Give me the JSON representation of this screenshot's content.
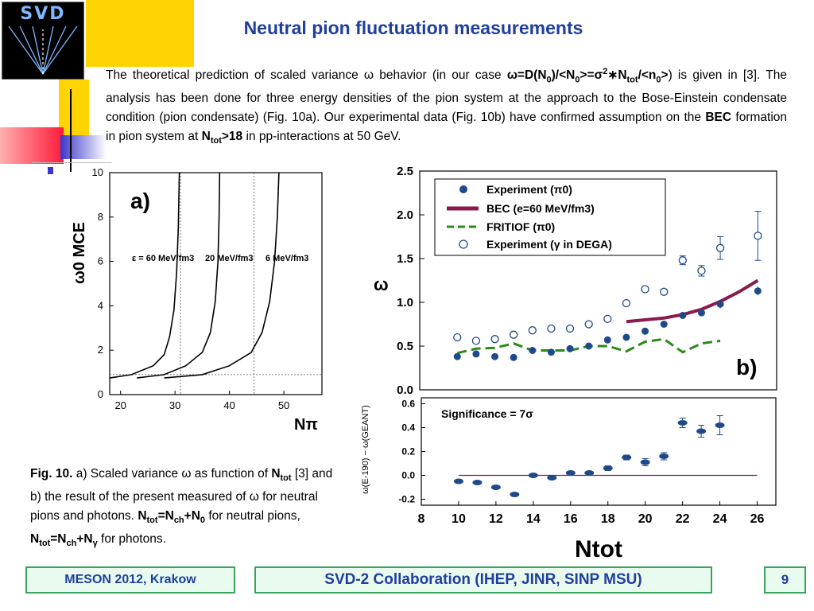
{
  "slide": {
    "title": "Neutral pion fluctuation measurements",
    "logo_text": "SVD",
    "intro": [
      {
        "t": "The theoretical prediction of scaled variance "
      },
      {
        "t": "ω",
        "b": false
      },
      {
        "t": " behavior (in our case "
      },
      {
        "t": "ω=D(N",
        "b": true
      },
      {
        "t": "0",
        "b": true,
        "sub": true
      },
      {
        "t": ")/<N",
        "b": true
      },
      {
        "t": "0",
        "b": true,
        "sub": true
      },
      {
        "t": ">=σ",
        "b": true
      },
      {
        "t": "2",
        "b": true,
        "sup": true
      },
      {
        "t": "∗N",
        "b": true
      },
      {
        "t": "tot",
        "b": true,
        "sub": true
      },
      {
        "t": "/<n",
        "b": true
      },
      {
        "t": "0",
        "b": true,
        "sub": true
      },
      {
        "t": ">",
        "b": true
      },
      {
        "t": ") is given in [3]. The analysis has been done for three energy densities of the pion system at the approach to the Bose-Einstein condensate condition (pion condensate) (Fig. 10a). Our experimental data (Fig. 10b) have confirmed assumption on the "
      },
      {
        "t": "BEC",
        "b": true
      },
      {
        "t": " formation in pion system at "
      },
      {
        "t": "N",
        "b": true
      },
      {
        "t": "tot",
        "b": true,
        "sub": true
      },
      {
        "t": ">18",
        "b": true
      },
      {
        "t": " in pp-interactions at 50 GeV."
      }
    ],
    "caption": [
      {
        "t": "Fig. 10.",
        "b": true
      },
      {
        "t": " a) Scaled variance ω as function of "
      },
      {
        "t": "N",
        "b": true
      },
      {
        "t": "tot",
        "b": true,
        "sub": true
      },
      {
        "t": " [3] and b) the result of the present measured of ω for neutral pions and photons.     "
      },
      {
        "t": "N",
        "b": true
      },
      {
        "t": "tot",
        "b": true,
        "sub": true
      },
      {
        "t": "=N",
        "b": true
      },
      {
        "t": "ch",
        "b": true,
        "sub": true
      },
      {
        "t": "+N",
        "b": true
      },
      {
        "t": "0",
        "b": true,
        "sub": true
      },
      {
        "t": " for neutral pions, "
      },
      {
        "t": "N",
        "b": true
      },
      {
        "t": "tot",
        "b": true,
        "sub": true
      },
      {
        "t": "=N",
        "b": true
      },
      {
        "t": "ch",
        "b": true,
        "sub": true
      },
      {
        "t": "+N",
        "b": true
      },
      {
        "t": "γ",
        "b": true,
        "sub": true
      },
      {
        "t": " for photons."
      }
    ],
    "footer": {
      "left": "MESON 2012, Krakow",
      "middle": "SVD-2 Collaboration (IHEP, JINR, SINP MSU)",
      "page": "9"
    },
    "colors": {
      "title": "#1f3ea0",
      "footer_bg": "#e9fbef",
      "footer_border": "#38a35a",
      "bec": "#8a1a4a",
      "fritiof": "#2a8a1a",
      "experiment": "#1f4a8a"
    }
  },
  "chart_data": [
    {
      "type": "line",
      "panel_label": "a)",
      "xlabel": "Nπ",
      "ylabel": "ω0 MCE",
      "xlim": [
        18,
        57
      ],
      "ylim": [
        0,
        10
      ],
      "xticks": [
        20,
        30,
        40,
        50
      ],
      "yticks": [
        0,
        2,
        4,
        6,
        8,
        10
      ],
      "grid_v": [
        31,
        44.5
      ],
      "grid_h": [
        0.9
      ],
      "curve_labels": [
        "ε = 60 MeV/fm3",
        "20 MeV/fm3",
        "6 MeV/fm3"
      ],
      "series": [
        {
          "label": "ε = 60 MeV/fm3",
          "x": [
            18,
            22,
            26,
            28,
            29,
            29.8,
            30.3,
            30.6,
            30.8
          ],
          "y": [
            0.75,
            0.9,
            1.3,
            1.8,
            2.6,
            3.8,
            5.5,
            7.5,
            10
          ]
        },
        {
          "label": "20 MeV/fm3",
          "x": [
            23,
            28,
            32,
            35,
            36.5,
            37.4,
            37.9,
            38.1,
            38.2
          ],
          "y": [
            0.75,
            0.9,
            1.3,
            1.9,
            2.8,
            4.2,
            6.0,
            8.0,
            10
          ]
        },
        {
          "label": "6 MeV/fm3",
          "x": [
            28,
            35,
            40,
            44,
            46,
            47.4,
            48.3,
            48.8,
            49.1
          ],
          "y": [
            0.75,
            0.9,
            1.3,
            1.9,
            2.8,
            4.2,
            6.0,
            8.0,
            10
          ]
        }
      ]
    },
    {
      "type": "scatter",
      "panel_label": "b)",
      "ylabel": "ω",
      "xlim": [
        8,
        27
      ],
      "ylim": [
        0,
        2.5
      ],
      "yticks": [
        0.0,
        0.5,
        1.0,
        1.5,
        2.0,
        2.5
      ],
      "legend": [
        "Experiment (π0)",
        "BEC (e=60 MeV/fm3)",
        "FRITIOF (π0)",
        "Experiment (γ in DEGA)"
      ],
      "legend_position": "top-left",
      "series": [
        {
          "name": "Experiment (π0)",
          "x": [
            10,
            11,
            12,
            13,
            14,
            15,
            16,
            17,
            18,
            19,
            20,
            21,
            22,
            23,
            24,
            26
          ],
          "y": [
            0.38,
            0.41,
            0.38,
            0.37,
            0.45,
            0.43,
            0.47,
            0.5,
            0.57,
            0.6,
            0.67,
            0.75,
            0.85,
            0.88,
            0.98,
            1.13
          ],
          "err": [
            0.02,
            0.02,
            0.02,
            0.02,
            0.02,
            0.02,
            0.02,
            0.02,
            0.02,
            0.03,
            0.03,
            0.03,
            0.03,
            0.03,
            0.05,
            0.05
          ]
        },
        {
          "name": "BEC (e=60 MeV/fm3)",
          "x": [
            19,
            20,
            21,
            22,
            23,
            24,
            25,
            26
          ],
          "y": [
            0.78,
            0.8,
            0.82,
            0.86,
            0.92,
            1.01,
            1.12,
            1.25
          ]
        },
        {
          "name": "FRITIOF (π0)",
          "x": [
            10,
            11,
            12,
            13,
            14,
            15,
            16,
            17,
            18,
            19,
            20,
            21,
            22,
            23,
            24
          ],
          "y": [
            0.42,
            0.47,
            0.48,
            0.53,
            0.45,
            0.45,
            0.45,
            0.5,
            0.5,
            0.44,
            0.55,
            0.58,
            0.43,
            0.53,
            0.56
          ]
        },
        {
          "name": "Experiment (γ in DEGA)",
          "x": [
            10,
            11,
            12,
            13,
            14,
            15,
            16,
            17,
            18,
            19,
            20,
            21,
            22,
            23,
            24,
            26
          ],
          "y": [
            0.6,
            0.56,
            0.58,
            0.63,
            0.68,
            0.7,
            0.7,
            0.75,
            0.81,
            0.99,
            1.15,
            1.12,
            1.48,
            1.36,
            1.62,
            1.76
          ],
          "err": [
            0.01,
            0.01,
            0.01,
            0.01,
            0.01,
            0.01,
            0.01,
            0.02,
            0.02,
            0.02,
            0.02,
            0.03,
            0.05,
            0.06,
            0.13,
            0.28
          ]
        }
      ]
    },
    {
      "type": "scatter",
      "annotation": "Significance = 7σ",
      "xlabel": "Ntot",
      "ylabel": "ω(E-190) − ω(GEANT)",
      "xlim": [
        8,
        27
      ],
      "ylim": [
        -0.25,
        0.65
      ],
      "xticks": [
        8,
        10,
        12,
        14,
        16,
        18,
        20,
        22,
        24,
        26
      ],
      "yticks": [
        -0.2,
        0.0,
        0.2,
        0.4,
        0.6
      ],
      "ytick_labels": [
        "-0.2",
        "0.0",
        "0.2",
        "0.4",
        "0.6"
      ],
      "hline": 0,
      "series": [
        {
          "name": "difference",
          "x": [
            10,
            11,
            12,
            13,
            14,
            15,
            16,
            17,
            18,
            19,
            20,
            21,
            22,
            23,
            24
          ],
          "y": [
            -0.05,
            -0.06,
            -0.1,
            -0.16,
            0.0,
            -0.02,
            0.02,
            0.02,
            0.06,
            0.15,
            0.11,
            0.16,
            0.44,
            0.37,
            0.42
          ],
          "err": [
            0.01,
            0.01,
            0.01,
            0.01,
            0.01,
            0.01,
            0.01,
            0.01,
            0.02,
            0.02,
            0.03,
            0.03,
            0.04,
            0.05,
            0.08
          ]
        }
      ]
    }
  ]
}
